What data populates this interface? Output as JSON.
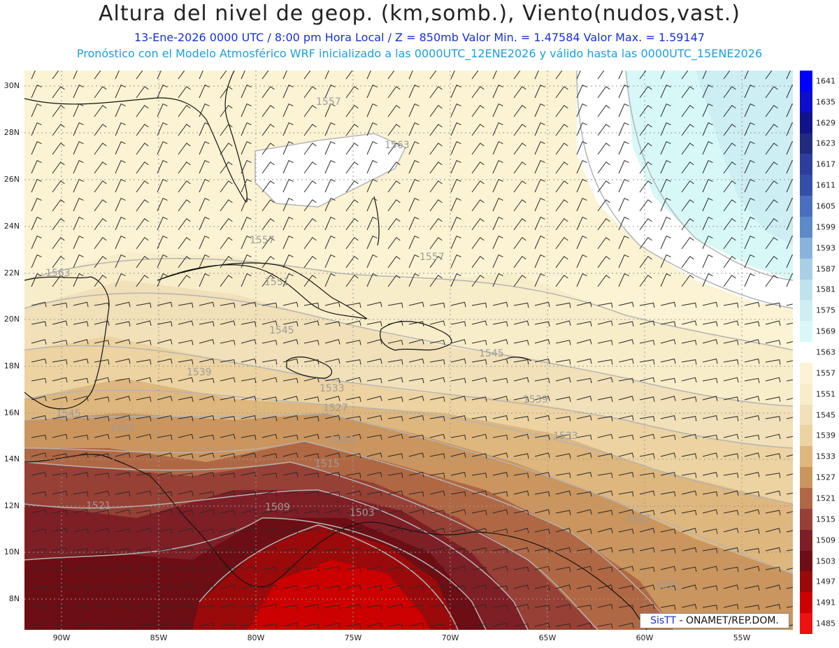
{
  "header": {
    "title": "Altura del nivel de geop. (km,somb.), Viento(nudos,vast.)",
    "subtitle": "13-Ene-2026  0000 UTC / 8:00 pm Hora Local / Z = 850mb     Valor Min. = 1.47584  Valor Max. = 1.59147",
    "forecast_note": "Pronóstico con el Modelo Atmosférico WRF inicializado a las 0000UTC_12ENE2026 y válido hasta las  0000UTC_15ENE2026"
  },
  "axes": {
    "lat_labels": [
      "30N",
      "28N",
      "26N",
      "24N",
      "22N",
      "20N",
      "18N",
      "16N",
      "14N",
      "12N",
      "10N",
      "8N"
    ],
    "lon_labels": [
      "90W",
      "85W",
      "80W",
      "75W",
      "70W",
      "65W",
      "60W",
      "55W"
    ]
  },
  "colorbar": {
    "levels": [
      "1641",
      "1635",
      "1629",
      "1623",
      "1617",
      "1611",
      "1605",
      "1599",
      "1593",
      "1587",
      "1581",
      "1575",
      "1569",
      "1563",
      "1557",
      "1551",
      "1545",
      "1539",
      "1533",
      "1527",
      "1521",
      "1515",
      "1509",
      "1503",
      "1497",
      "1491",
      "1485"
    ],
    "colors": [
      "#0000ff",
      "#0d0dcc",
      "#12128a",
      "#1f2c80",
      "#2c3f9c",
      "#3350a8",
      "#4a6fbe",
      "#5b8ac9",
      "#88b3dc",
      "#a7cfe6",
      "#bfe3ee",
      "#cdeef3",
      "#d8f8f8",
      "#ffffff",
      "#fbf3d3",
      "#f8edc9",
      "#f1e0b8",
      "#ecd3a1",
      "#deb77e",
      "#ca955e",
      "#b06844",
      "#974035",
      "#7e1f25",
      "#6c0e14",
      "#9a0a0a",
      "#cc0000",
      "#ee1111"
    ]
  },
  "contour_labels": [
    "1557",
    "1563",
    "1557",
    "1557",
    "1563",
    "1551",
    "1545",
    "1539",
    "1533",
    "1527",
    "1545",
    "1539",
    "1533",
    "1521",
    "1515",
    "1509",
    "1503",
    "1521",
    "1527",
    "1521",
    "1545",
    "1551"
  ],
  "footer": {
    "brand": "SisTT",
    "org": "- ONAMET/REP.DOM."
  }
}
